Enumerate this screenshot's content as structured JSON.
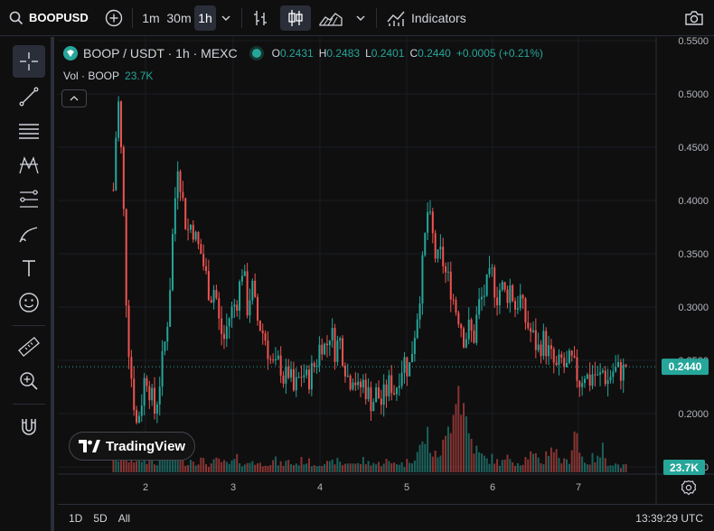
{
  "topbar": {
    "symbol": "BOOPUSD",
    "intervals": [
      "1m",
      "30m",
      "1h"
    ],
    "active_interval": "1h",
    "indicators_label": "Indicators"
  },
  "legend": {
    "title": "BOOP / USDT · 1h · MEXC",
    "ohlc": {
      "o_label": "O",
      "o": "0.2431",
      "h_label": "H",
      "h": "0.2483",
      "l_label": "L",
      "l": "0.2401",
      "c_label": "C",
      "c": "0.2440"
    },
    "change": "+0.0005 (+0.21%)",
    "vol_label": "Vol · BOOP",
    "vol_value": "23.7K"
  },
  "price_axis": {
    "ticks": [
      "0.5500",
      "0.5000",
      "0.4500",
      "0.4000",
      "0.3500",
      "0.3000",
      "0.2500",
      "0.2000",
      "0.1500"
    ],
    "current_price": "0.2440",
    "current_volume": "23.7K"
  },
  "time_axis": {
    "ticks": [
      "2",
      "3",
      "4",
      "5",
      "6",
      "7"
    ]
  },
  "branding": {
    "name": "TradingView"
  },
  "bottom_bar": {
    "ranges": [
      "1D",
      "5D",
      "All"
    ],
    "clock": "13:39:29 UTC"
  },
  "colors": {
    "up": "#26a69a",
    "down": "#ef5350",
    "bg": "#0f0f0f",
    "grid": "#1e222d"
  },
  "chart_data": {
    "type": "candlestick",
    "ylim": [
      0.15,
      0.55
    ],
    "path": [
      0.41,
      0.5,
      0.42,
      0.28,
      0.23,
      0.19,
      0.21,
      0.24,
      0.22,
      0.2,
      0.23,
      0.26,
      0.3,
      0.38,
      0.44,
      0.4,
      0.37,
      0.38,
      0.36,
      0.35,
      0.33,
      0.31,
      0.32,
      0.28,
      0.27,
      0.29,
      0.3,
      0.31,
      0.34,
      0.3,
      0.32,
      0.29,
      0.28,
      0.27,
      0.25,
      0.24,
      0.25,
      0.23,
      0.24,
      0.22,
      0.23,
      0.24,
      0.23,
      0.24,
      0.25,
      0.27,
      0.26,
      0.28,
      0.26,
      0.27,
      0.25,
      0.23,
      0.24,
      0.22,
      0.23,
      0.22,
      0.21,
      0.22,
      0.21,
      0.22,
      0.23,
      0.22,
      0.24,
      0.25,
      0.24,
      0.27,
      0.3,
      0.34,
      0.39,
      0.37,
      0.34,
      0.35,
      0.33,
      0.32,
      0.3,
      0.29,
      0.27,
      0.28,
      0.27,
      0.3,
      0.31,
      0.32,
      0.33,
      0.31,
      0.32,
      0.31,
      0.32,
      0.3,
      0.31,
      0.29,
      0.28,
      0.27,
      0.26,
      0.27,
      0.26,
      0.25,
      0.24,
      0.25,
      0.24,
      0.25,
      0.24,
      0.23,
      0.24,
      0.23,
      0.24,
      0.23,
      0.24,
      0.23,
      0.24,
      0.24,
      0.24,
      0.24
    ],
    "volume": [
      0.15,
      0.05,
      0.12,
      0.08,
      0.1,
      0.06,
      0.09,
      0.07,
      0.11,
      0.05,
      0.08,
      0.1,
      0.07,
      0.18,
      0.22,
      0.08,
      0.06,
      0.09,
      0.07,
      0.08,
      0.06,
      0.05,
      0.07,
      0.08,
      0.06,
      0.05,
      0.07,
      0.09,
      0.06,
      0.05,
      0.08,
      0.06,
      0.05,
      0.07,
      0.06,
      0.08,
      0.05,
      0.06,
      0.07,
      0.05,
      0.06,
      0.08,
      0.07,
      0.06,
      0.05,
      0.07,
      0.06,
      0.05,
      0.08,
      0.06,
      0.05,
      0.07,
      0.06,
      0.05,
      0.08,
      0.06,
      0.07,
      0.05,
      0.06,
      0.08,
      0.05,
      0.07,
      0.06,
      0.05,
      0.08,
      0.1,
      0.14,
      0.18,
      0.25,
      0.12,
      0.1,
      0.15,
      0.2,
      0.35,
      0.62,
      0.55,
      0.4,
      0.25,
      0.18,
      0.12,
      0.1,
      0.08,
      0.09,
      0.07,
      0.06,
      0.08,
      0.1,
      0.07,
      0.06,
      0.08,
      0.12,
      0.1,
      0.08,
      0.06,
      0.14,
      0.18,
      0.12,
      0.08,
      0.06,
      0.1,
      0.35,
      0.12,
      0.08,
      0.06,
      0.1,
      0.08,
      0.15,
      0.07,
      0.06,
      0.05,
      0.04,
      0.04
    ]
  }
}
